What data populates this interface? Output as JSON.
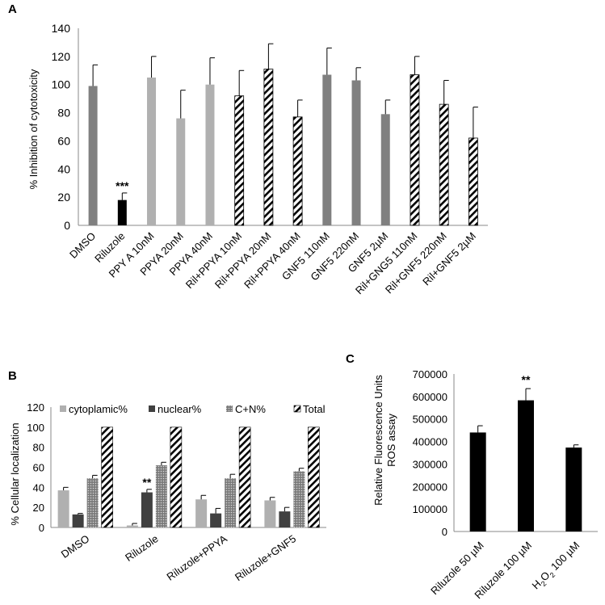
{
  "colors": {
    "gray": "#808080",
    "light_gray": "#b0b0b0",
    "black": "#000000",
    "dark_gray": "#404040"
  },
  "chart_data": [
    {
      "panel_label": "A",
      "type": "bar",
      "title": "",
      "xlabel": "",
      "ylabel": "% Inhibition of cytotoxicity",
      "ylim": [
        0,
        140
      ],
      "yticks": [
        "0",
        "20",
        "40",
        "60",
        "80",
        "100",
        "120",
        "140"
      ],
      "grid": false,
      "categories": [
        "DMSO",
        "Riluzole",
        "PPY A 10nM",
        "PPYA 20nM",
        "PPYA 40nM",
        "Ril+PPYA 10nM",
        "Ril+PPYA 20nM",
        "Ril+PPYA 40nM",
        "GNF5 110nM",
        "GNF5 220nM",
        "GNF5 2µM",
        "Ril+GNG5 110nM",
        "Ril+GNF5 220nM",
        "Ril+GNF5 2µM"
      ],
      "values": [
        99,
        18,
        105,
        76,
        100,
        92,
        111,
        77,
        107,
        103,
        79,
        107,
        86,
        62
      ],
      "errors": [
        15,
        5,
        15,
        20,
        19,
        18,
        18,
        12,
        19,
        9,
        10,
        13,
        17,
        22
      ],
      "fills": [
        "gray",
        "black",
        "light",
        "light",
        "light",
        "hatch",
        "hatch",
        "hatch",
        "gray",
        "gray",
        "gray",
        "hatch",
        "hatch",
        "hatch"
      ],
      "annotations": [
        {
          "index": 1,
          "text": "***"
        }
      ]
    },
    {
      "panel_label": "B",
      "type": "bar",
      "title": "",
      "xlabel": "",
      "ylabel": "% Cellular localization",
      "ylim": [
        0,
        120
      ],
      "yticks": [
        "0",
        "20",
        "40",
        "60",
        "80",
        "100",
        "120"
      ],
      "grid": false,
      "legend_position": "top",
      "categories": [
        "DMSO",
        "Riluzole",
        "Riluzole+PPYA",
        "Riluzole+GNF5"
      ],
      "series": [
        {
          "name": "cytoplamic%",
          "fill": "light",
          "values": [
            37,
            2,
            28,
            27
          ],
          "errors": [
            3,
            2,
            4,
            3
          ]
        },
        {
          "name": "nuclear%",
          "fill": "dark",
          "values": [
            13,
            35,
            14,
            16
          ],
          "errors": [
            1,
            3,
            5,
            4
          ]
        },
        {
          "name": "C+N%",
          "fill": "dots",
          "values": [
            49,
            62,
            49,
            56
          ],
          "errors": [
            3,
            3,
            4,
            3
          ]
        },
        {
          "name": "Total",
          "fill": "hatch",
          "values": [
            100,
            100,
            100,
            100
          ],
          "errors": [
            0,
            0,
            0,
            0
          ]
        }
      ],
      "annotations": [
        {
          "category": 1,
          "series": 1,
          "text": "**"
        }
      ]
    },
    {
      "panel_label": "C",
      "type": "bar",
      "title": "",
      "xlabel": "",
      "ylabel": "Relative Fluorescence Units",
      "ylabel2": "ROS assay",
      "ylim": [
        0,
        700000
      ],
      "yticks": [
        "0",
        "100000",
        "200000",
        "300000",
        "400000",
        "500000",
        "600000",
        "700000"
      ],
      "grid": false,
      "categories": [
        "Riluzole 50 µM",
        "Riluzole 100 µM",
        "H2O2 100 µM"
      ],
      "category_labels": [
        {
          "main": "Riluzole 50 µM"
        },
        {
          "main": "Riluzole 100 µM"
        },
        {
          "pre": "H",
          "sub": "2",
          "mid": "O",
          "sub2": "2",
          "post": " 100 µM"
        }
      ],
      "values": [
        440000,
        583000,
        373000
      ],
      "errors": [
        30000,
        52000,
        12000
      ],
      "annotations": [
        {
          "index": 1,
          "text": "**"
        }
      ]
    }
  ]
}
